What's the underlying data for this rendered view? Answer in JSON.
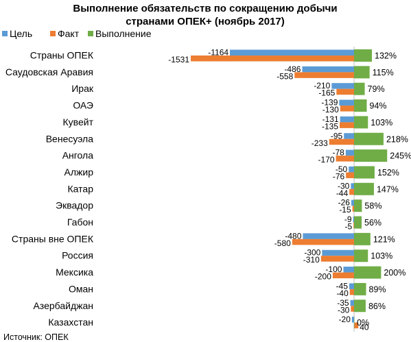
{
  "chart_data": {
    "type": "bar",
    "title": [
      "Выполнение обязательств по сокращению добычи",
      "странами ОПЕК+ (ноябрь 2017)"
    ],
    "legend_position": "top-left",
    "grid": false,
    "categories": [
      "Страны ОПЕК",
      "Саудовская Аравия",
      "Ирак",
      "ОАЭ",
      "Кувейт",
      "Венесуэла",
      "Ангола",
      "Алжир",
      "Катар",
      "Эквадор",
      "Габон",
      "Страны вне ОПЕК",
      "Россия",
      "Мексика",
      "Оман",
      "Азербайджан",
      "Казахстан"
    ],
    "series": [
      {
        "name": "Цель",
        "color": "#5b9bd5",
        "values": [
          -1164,
          -486,
          -210,
          -139,
          -131,
          -95,
          -78,
          -50,
          -30,
          -26,
          -9,
          -480,
          -300,
          -100,
          -45,
          -35,
          -20
        ]
      },
      {
        "name": "Факт",
        "color": "#ed7d31",
        "values": [
          -1531,
          -558,
          -165,
          -130,
          -135,
          -233,
          -170,
          -76,
          -44,
          -15,
          -5,
          -580,
          -310,
          -200,
          -40,
          -30,
          40
        ]
      },
      {
        "name": "Выполнение",
        "color": "#70ad47",
        "values": [
          132,
          115,
          79,
          94,
          103,
          218,
          245,
          152,
          147,
          58,
          56,
          121,
          103,
          200,
          89,
          86,
          0
        ],
        "labels": [
          "132%",
          "115%",
          "79%",
          "94%",
          "103%",
          "218%",
          "245%",
          "152%",
          "147%",
          "58%",
          "56%",
          "121%",
          "103%",
          "200%",
          "89%",
          "86%",
          "0%"
        ]
      }
    ]
  },
  "source": "Источник: ОПЕК"
}
